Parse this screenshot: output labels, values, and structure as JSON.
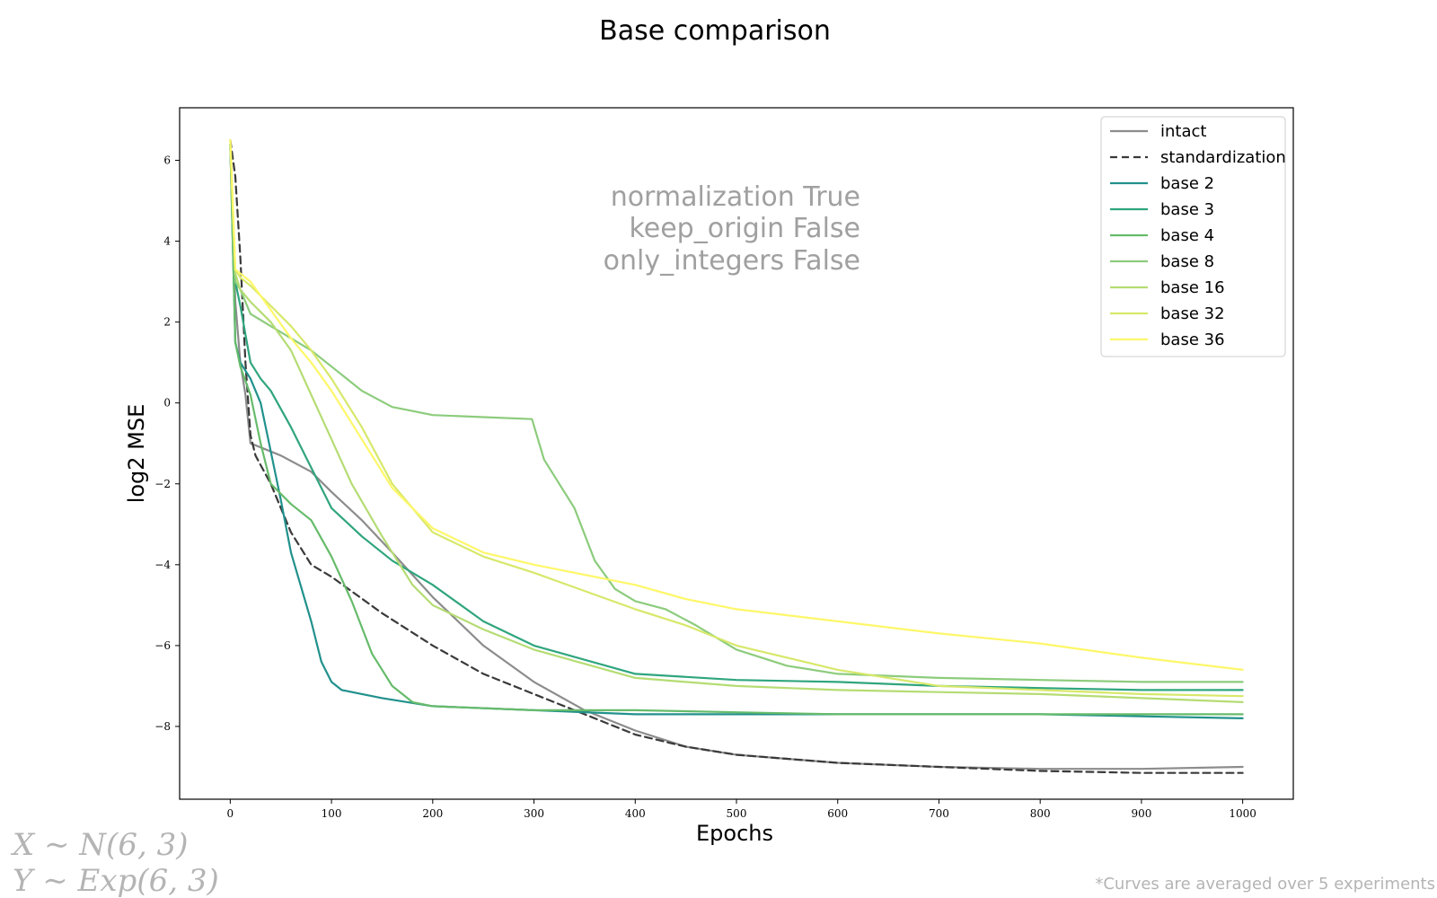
{
  "chart_data": {
    "type": "line",
    "title": "Base comparison",
    "xlabel": "Epochs",
    "ylabel": "log2 MSE",
    "xlim": [
      -50,
      1050
    ],
    "ylim": [
      -9.8,
      7.3
    ],
    "xticks": [
      0,
      100,
      200,
      300,
      400,
      500,
      600,
      700,
      800,
      900,
      1000
    ],
    "yticks": [
      6,
      4,
      2,
      0,
      -2,
      -4,
      -6,
      -8
    ],
    "ytick_labels": [
      "6",
      "4",
      "2",
      "0",
      "−2",
      "−4",
      "−6",
      "−8"
    ],
    "grid": false,
    "legend_position": "top-right",
    "annotations": [
      "normalization True",
      "keep_origin False",
      "only_integers False"
    ],
    "series": [
      {
        "name": "intact",
        "color": "#8c8c8c",
        "dash": "solid",
        "x": [
          0,
          5,
          10,
          15,
          20,
          30,
          50,
          80,
          100,
          130,
          160,
          200,
          250,
          300,
          350,
          400,
          450,
          500,
          600,
          700,
          800,
          900,
          1000
        ],
        "y": [
          6.3,
          2.5,
          1.0,
          0.2,
          -1.0,
          -1.1,
          -1.3,
          -1.7,
          -2.2,
          -2.9,
          -3.7,
          -4.8,
          -6.0,
          -6.9,
          -7.6,
          -8.1,
          -8.5,
          -8.7,
          -8.9,
          -9.0,
          -9.05,
          -9.05,
          -9.0
        ]
      },
      {
        "name": "standardization",
        "color": "#3a3a3a",
        "dash": "dashed",
        "x": [
          0,
          5,
          10,
          15,
          20,
          25,
          40,
          60,
          80,
          100,
          150,
          200,
          250,
          300,
          350,
          400,
          450,
          500,
          600,
          700,
          800,
          900,
          1000
        ],
        "y": [
          6.5,
          5.6,
          3.6,
          1.0,
          -0.8,
          -1.3,
          -2.0,
          -3.2,
          -4.0,
          -4.3,
          -5.2,
          -6.0,
          -6.7,
          -7.2,
          -7.7,
          -8.2,
          -8.5,
          -8.7,
          -8.9,
          -9.0,
          -9.1,
          -9.15,
          -9.15
        ]
      },
      {
        "name": "base 2",
        "color": "#21918c",
        "dash": "solid",
        "x": [
          0,
          5,
          10,
          20,
          30,
          40,
          50,
          60,
          80,
          90,
          100,
          110,
          150,
          200,
          300,
          400,
          500,
          600,
          700,
          800,
          900,
          1000
        ],
        "y": [
          6.4,
          1.5,
          1.0,
          0.6,
          0.0,
          -1.2,
          -2.4,
          -3.7,
          -5.4,
          -6.4,
          -6.9,
          -7.1,
          -7.3,
          -7.5,
          -7.6,
          -7.7,
          -7.7,
          -7.7,
          -7.7,
          -7.7,
          -7.75,
          -7.8
        ]
      },
      {
        "name": "base 3",
        "color": "#2fa57e",
        "dash": "solid",
        "x": [
          0,
          5,
          10,
          20,
          30,
          40,
          60,
          80,
          100,
          130,
          160,
          200,
          250,
          300,
          400,
          500,
          600,
          700,
          800,
          900,
          1000
        ],
        "y": [
          6.4,
          3.0,
          2.4,
          1.0,
          0.6,
          0.3,
          -0.6,
          -1.6,
          -2.6,
          -3.3,
          -3.9,
          -4.5,
          -5.4,
          -6.0,
          -6.7,
          -6.85,
          -6.9,
          -7.0,
          -7.05,
          -7.1,
          -7.1
        ]
      },
      {
        "name": "base 4",
        "color": "#66bb6a",
        "dash": "solid",
        "x": [
          0,
          5,
          10,
          20,
          30,
          40,
          60,
          80,
          100,
          120,
          140,
          160,
          180,
          200,
          300,
          400,
          500,
          600,
          700,
          800,
          900,
          1000
        ],
        "y": [
          6.4,
          1.5,
          0.9,
          0.2,
          -1.0,
          -2.0,
          -2.5,
          -2.9,
          -3.8,
          -4.9,
          -6.2,
          -7.0,
          -7.4,
          -7.5,
          -7.6,
          -7.6,
          -7.65,
          -7.7,
          -7.7,
          -7.7,
          -7.7,
          -7.7
        ]
      },
      {
        "name": "base 8",
        "color": "#8ccc7c",
        "dash": "solid",
        "x": [
          0,
          5,
          10,
          20,
          40,
          60,
          80,
          100,
          130,
          160,
          180,
          200,
          250,
          298,
          310,
          340,
          360,
          380,
          400,
          430,
          460,
          500,
          550,
          600,
          700,
          800,
          900,
          1000
        ],
        "y": [
          6.3,
          3.0,
          2.8,
          2.2,
          1.9,
          1.6,
          1.3,
          0.9,
          0.3,
          -0.1,
          -0.2,
          -0.3,
          -0.35,
          -0.4,
          -1.4,
          -2.6,
          -3.9,
          -4.6,
          -4.9,
          -5.1,
          -5.5,
          -6.1,
          -6.5,
          -6.7,
          -6.8,
          -6.85,
          -6.9,
          -6.9
        ]
      },
      {
        "name": "base 16",
        "color": "#b5dc73",
        "dash": "solid",
        "x": [
          0,
          5,
          10,
          20,
          40,
          60,
          80,
          100,
          120,
          150,
          180,
          200,
          250,
          300,
          400,
          500,
          600,
          700,
          800,
          900,
          1000
        ],
        "y": [
          6.4,
          3.2,
          2.8,
          2.5,
          2.0,
          1.3,
          0.2,
          -0.9,
          -2.0,
          -3.3,
          -4.5,
          -5.0,
          -5.6,
          -6.1,
          -6.8,
          -7.0,
          -7.1,
          -7.15,
          -7.2,
          -7.3,
          -7.4
        ]
      },
      {
        "name": "base 32",
        "color": "#d7e86a",
        "dash": "solid",
        "x": [
          0,
          5,
          10,
          20,
          40,
          60,
          80,
          100,
          130,
          160,
          200,
          250,
          300,
          400,
          450,
          500,
          600,
          700,
          800,
          900,
          1000
        ],
        "y": [
          6.5,
          3.3,
          3.1,
          2.9,
          2.4,
          1.9,
          1.3,
          0.6,
          -0.6,
          -2.0,
          -3.2,
          -3.8,
          -4.2,
          -5.1,
          -5.5,
          -6.0,
          -6.6,
          -7.0,
          -7.1,
          -7.2,
          -7.25
        ]
      },
      {
        "name": "base 36",
        "color": "#fdf769",
        "dash": "solid",
        "x": [
          0,
          5,
          10,
          20,
          40,
          60,
          80,
          100,
          130,
          160,
          200,
          250,
          300,
          400,
          450,
          500,
          600,
          700,
          800,
          900,
          1000
        ],
        "y": [
          6.5,
          3.3,
          3.2,
          3.0,
          2.3,
          1.6,
          1.0,
          0.3,
          -0.9,
          -2.1,
          -3.1,
          -3.7,
          -4.0,
          -4.5,
          -4.85,
          -5.1,
          -5.4,
          -5.7,
          -5.95,
          -6.3,
          -6.6
        ]
      }
    ]
  },
  "footer": {
    "formula_x": "X ∼ N(6, 3)",
    "formula_y": "Y ∼ Exp(6, 3)",
    "note": "*Curves are averaged over 5 experiments"
  }
}
